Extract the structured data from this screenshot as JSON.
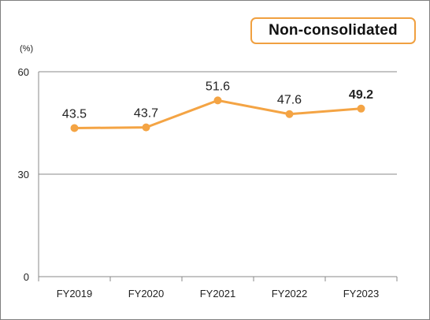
{
  "badge": "Non-consolidated",
  "unit_label": "(%)",
  "colors": {
    "line": "#f4a444",
    "grid": "#888888",
    "highlight": "#ff0000",
    "badge_border": "#f0a040"
  },
  "chart_data": {
    "type": "line",
    "categories": [
      "FY2019",
      "FY2020",
      "FY2021",
      "FY2022",
      "FY2023"
    ],
    "series": [
      {
        "values": [
          43.5,
          43.7,
          51.6,
          47.6,
          49.2
        ]
      }
    ],
    "data_labels": [
      "43.5",
      "43.7",
      "51.6",
      "47.6",
      "49.2"
    ],
    "highlighted_index": 4,
    "yticks": [
      "0",
      "30",
      "60"
    ],
    "ylim": [
      0,
      60
    ],
    "grid": true,
    "legend": "none"
  }
}
